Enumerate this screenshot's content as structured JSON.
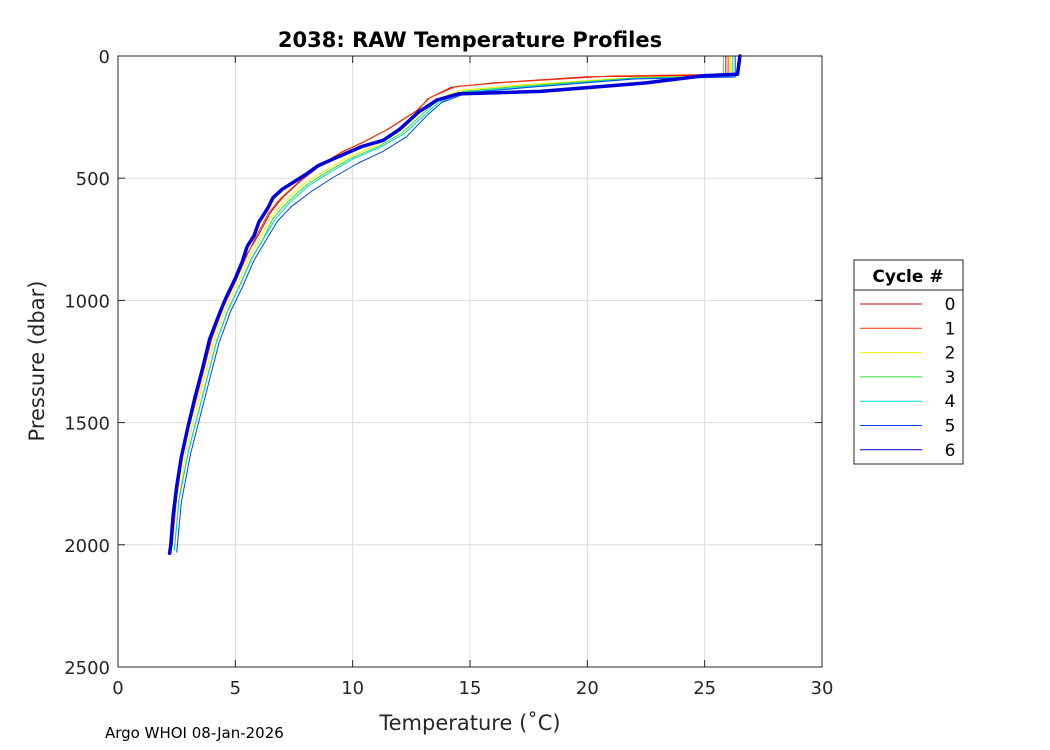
{
  "chart_data": {
    "type": "line",
    "title": "2038: RAW Temperature Profiles",
    "xlabel": "Temperature (˚C)",
    "ylabel": "Pressure (dbar)",
    "xlim": [
      0,
      30
    ],
    "ylim": [
      0,
      2500
    ],
    "y_reversed": true,
    "grid": true,
    "xticks": [
      0,
      5,
      10,
      15,
      20,
      25,
      30
    ],
    "yticks": [
      0,
      500,
      1000,
      1500,
      2000,
      2500
    ],
    "legend": {
      "title": "Cycle #",
      "placement": "right"
    },
    "series": [
      {
        "name": "0",
        "color": "#cc0000",
        "width": 1,
        "points": [
          [
            25.9,
            0
          ],
          [
            25.9,
            78
          ],
          [
            20,
            85
          ],
          [
            16,
            110
          ],
          [
            14.2,
            128
          ],
          [
            13.2,
            175
          ],
          [
            12.8,
            220
          ],
          [
            11.5,
            300
          ],
          [
            10.5,
            350
          ],
          [
            9.5,
            395
          ],
          [
            8.6,
            450
          ],
          [
            7.8,
            510
          ],
          [
            7.0,
            580
          ],
          [
            6.5,
            640
          ],
          [
            6.0,
            730
          ],
          [
            5.5,
            810
          ],
          [
            5.0,
            920
          ],
          [
            4.5,
            1020
          ],
          [
            4.0,
            1150
          ],
          [
            3.6,
            1300
          ],
          [
            3.2,
            1450
          ],
          [
            2.8,
            1600
          ],
          [
            2.5,
            1800
          ],
          [
            2.3,
            2000
          ]
        ]
      },
      {
        "name": "1",
        "color": "#ff3300",
        "width": 1,
        "points": [
          [
            26.0,
            0
          ],
          [
            26.0,
            75
          ],
          [
            21,
            82
          ],
          [
            16.5,
            108
          ],
          [
            14.4,
            125
          ],
          [
            13.3,
            170
          ],
          [
            12.7,
            225
          ],
          [
            11.4,
            305
          ],
          [
            10.4,
            355
          ],
          [
            9.4,
            400
          ],
          [
            8.5,
            455
          ],
          [
            7.7,
            515
          ],
          [
            6.9,
            585
          ],
          [
            6.4,
            645
          ],
          [
            5.9,
            735
          ],
          [
            5.5,
            815
          ],
          [
            5.0,
            925
          ],
          [
            4.5,
            1025
          ],
          [
            4.0,
            1155
          ],
          [
            3.6,
            1305
          ],
          [
            3.2,
            1455
          ],
          [
            2.8,
            1605
          ],
          [
            2.5,
            1805
          ],
          [
            2.3,
            2010
          ]
        ]
      },
      {
        "name": "2",
        "color": "#f0f000",
        "width": 1,
        "points": [
          [
            26.1,
            0
          ],
          [
            26.1,
            80
          ],
          [
            22,
            88
          ],
          [
            17,
            120
          ],
          [
            14.6,
            140
          ],
          [
            13.5,
            180
          ],
          [
            12.9,
            230
          ],
          [
            12.0,
            310
          ],
          [
            11.0,
            365
          ],
          [
            9.8,
            415
          ],
          [
            8.8,
            470
          ],
          [
            7.9,
            525
          ],
          [
            7.1,
            595
          ],
          [
            6.5,
            660
          ],
          [
            6.1,
            740
          ],
          [
            5.6,
            820
          ],
          [
            5.1,
            930
          ],
          [
            4.6,
            1030
          ],
          [
            4.1,
            1160
          ],
          [
            3.7,
            1310
          ],
          [
            3.3,
            1460
          ],
          [
            2.9,
            1610
          ],
          [
            2.6,
            1810
          ],
          [
            2.4,
            2015
          ]
        ]
      },
      {
        "name": "3",
        "color": "#33dd33",
        "width": 1,
        "points": [
          [
            25.8,
            0
          ],
          [
            25.8,
            82
          ],
          [
            22,
            90
          ],
          [
            17,
            125
          ],
          [
            14.7,
            145
          ],
          [
            13.6,
            185
          ],
          [
            13.0,
            235
          ],
          [
            12.1,
            315
          ],
          [
            11.1,
            370
          ],
          [
            9.9,
            420
          ],
          [
            8.9,
            475
          ],
          [
            8.0,
            530
          ],
          [
            7.2,
            600
          ],
          [
            6.6,
            665
          ],
          [
            6.2,
            745
          ],
          [
            5.7,
            825
          ],
          [
            5.2,
            935
          ],
          [
            4.7,
            1035
          ],
          [
            4.2,
            1165
          ],
          [
            3.8,
            1315
          ],
          [
            3.4,
            1465
          ],
          [
            3.0,
            1615
          ],
          [
            2.6,
            1815
          ],
          [
            2.4,
            2020
          ]
        ]
      },
      {
        "name": "4",
        "color": "#00d4d4",
        "width": 1,
        "points": [
          [
            26.2,
            0
          ],
          [
            26.2,
            84
          ],
          [
            22,
            92
          ],
          [
            17.2,
            128
          ],
          [
            14.8,
            148
          ],
          [
            13.7,
            188
          ],
          [
            13.1,
            238
          ],
          [
            12.2,
            318
          ],
          [
            11.2,
            372
          ],
          [
            10.0,
            422
          ],
          [
            9.0,
            478
          ],
          [
            8.1,
            532
          ],
          [
            7.3,
            602
          ],
          [
            6.7,
            668
          ],
          [
            6.2,
            748
          ],
          [
            5.7,
            828
          ],
          [
            5.2,
            938
          ],
          [
            4.7,
            1038
          ],
          [
            4.2,
            1168
          ],
          [
            3.8,
            1318
          ],
          [
            3.4,
            1468
          ],
          [
            3.0,
            1618
          ],
          [
            2.6,
            1818
          ],
          [
            2.4,
            2022
          ]
        ]
      },
      {
        "name": "5",
        "color": "#0044ee",
        "width": 1,
        "points": [
          [
            26.3,
            0
          ],
          [
            26.3,
            86
          ],
          [
            22,
            94
          ],
          [
            17.3,
            130
          ],
          [
            14.9,
            150
          ],
          [
            13.8,
            190
          ],
          [
            13.2,
            240
          ],
          [
            12.3,
            330
          ],
          [
            11.3,
            390
          ],
          [
            10.2,
            440
          ],
          [
            9.2,
            495
          ],
          [
            8.3,
            550
          ],
          [
            7.4,
            615
          ],
          [
            6.8,
            675
          ],
          [
            6.3,
            755
          ],
          [
            5.8,
            835
          ],
          [
            5.3,
            945
          ],
          [
            4.8,
            1045
          ],
          [
            4.3,
            1175
          ],
          [
            3.9,
            1325
          ],
          [
            3.5,
            1475
          ],
          [
            3.1,
            1625
          ],
          [
            2.7,
            1825
          ],
          [
            2.5,
            2030
          ]
        ]
      },
      {
        "name": "6",
        "color": "#0000dd",
        "width": 3.5,
        "points": [
          [
            26.5,
            0
          ],
          [
            26.4,
            75
          ],
          [
            25,
            80
          ],
          [
            22.5,
            110
          ],
          [
            18,
            145
          ],
          [
            14.5,
            155
          ],
          [
            13.6,
            180
          ],
          [
            12.8,
            230
          ],
          [
            12.0,
            300
          ],
          [
            11.3,
            345
          ],
          [
            10.4,
            370
          ],
          [
            9.8,
            395
          ],
          [
            9.2,
            420
          ],
          [
            8.5,
            450
          ],
          [
            8.0,
            485
          ],
          [
            7.5,
            515
          ],
          [
            7.0,
            545
          ],
          [
            6.6,
            580
          ],
          [
            6.4,
            620
          ],
          [
            6.0,
            680
          ],
          [
            5.8,
            735
          ],
          [
            5.5,
            780
          ],
          [
            5.3,
            840
          ],
          [
            5.0,
            910
          ],
          [
            4.6,
            990
          ],
          [
            4.3,
            1060
          ],
          [
            3.9,
            1160
          ],
          [
            3.6,
            1280
          ],
          [
            3.3,
            1390
          ],
          [
            3.0,
            1510
          ],
          [
            2.7,
            1640
          ],
          [
            2.5,
            1760
          ],
          [
            2.35,
            1880
          ],
          [
            2.25,
            2000
          ],
          [
            2.2,
            2035
          ]
        ]
      }
    ]
  },
  "footer": "Argo WHOI 08-Jan-2026"
}
